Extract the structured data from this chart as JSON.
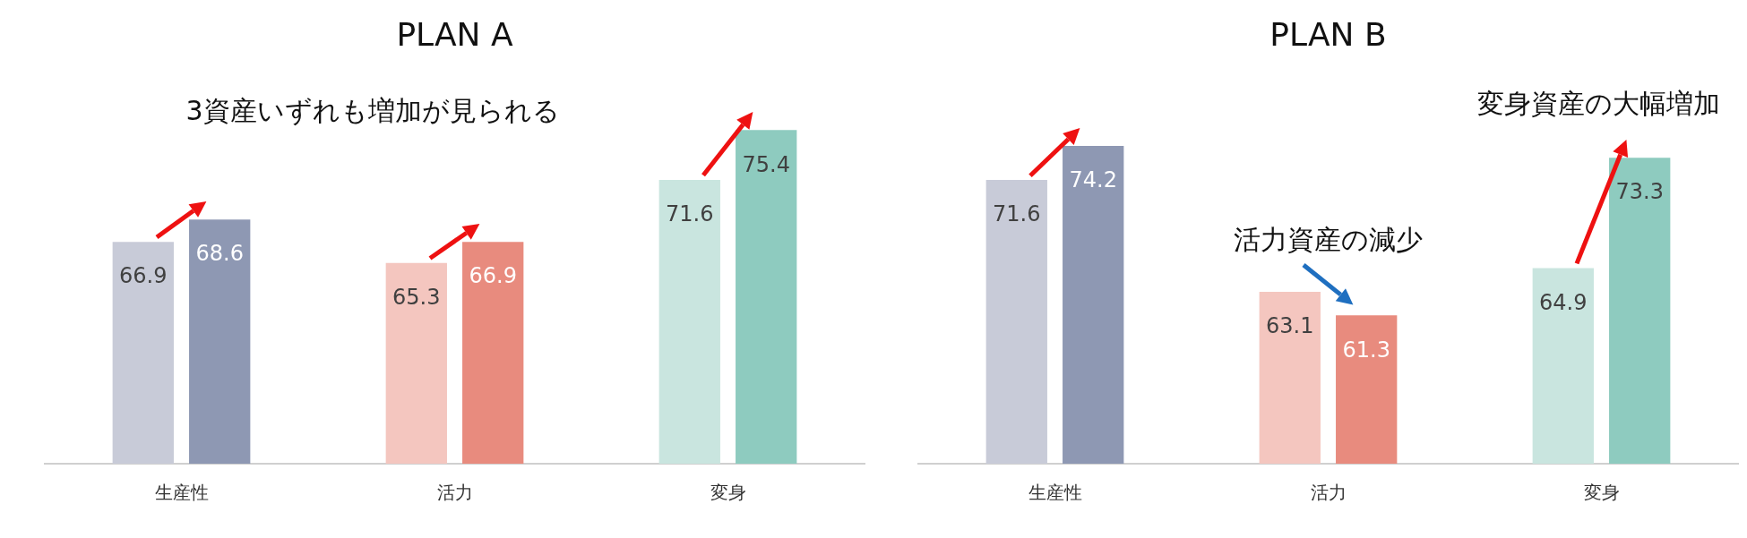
{
  "chart_data": [
    {
      "type": "bar",
      "title": "PLAN A",
      "categories": [
        "生産性",
        "活力",
        "変身"
      ],
      "series": [
        {
          "colors": [
            "#c8cbd8",
            "#f4c6bf",
            "#c9e5df"
          ],
          "values": [
            66.9,
            65.3,
            71.6
          ]
        },
        {
          "colors": [
            "#8e98b3",
            "#e88b7e",
            "#8ecbbf"
          ],
          "values": [
            68.6,
            66.9,
            75.4
          ]
        }
      ],
      "tick_labels": "x",
      "grid": false,
      "legend": false,
      "data_labels": true,
      "annotations": [
        "3資産いずれも増加が見られる"
      ]
    },
    {
      "type": "bar",
      "title": "PLAN B",
      "categories": [
        "生産性",
        "活力",
        "変身"
      ],
      "series": [
        {
          "colors": [
            "#c8cbd8",
            "#f4c6bf",
            "#c9e5df"
          ],
          "values": [
            71.6,
            63.1,
            64.9
          ]
        },
        {
          "colors": [
            "#8e98b3",
            "#e88b7e",
            "#8ecbbf"
          ],
          "values": [
            74.2,
            61.3,
            73.3
          ]
        }
      ],
      "tick_labels": "x",
      "grid": false,
      "legend": false,
      "data_labels": true,
      "annotations": [
        "活力資産の減少",
        "変身資産の大幅増加"
      ]
    }
  ]
}
